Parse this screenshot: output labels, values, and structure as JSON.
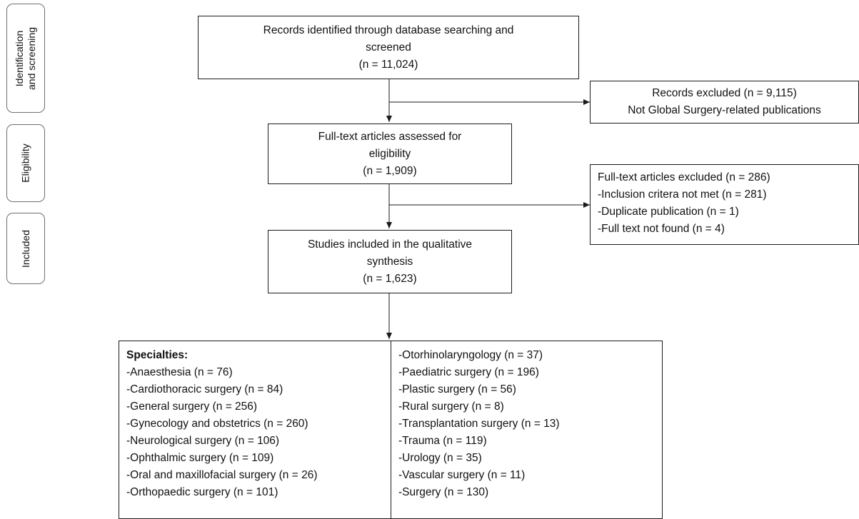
{
  "stages": {
    "identification": [
      "Identification",
      "and screening"
    ],
    "eligibility": [
      "Eligibility"
    ],
    "included": [
      "Included"
    ]
  },
  "records_identified": {
    "lines": [
      "Records identified through database searching and",
      "screened",
      "(n = 11,024)"
    ]
  },
  "records_excluded": {
    "lines": [
      "Records excluded (n = 9,115)",
      "Not Global Surgery-related publications"
    ]
  },
  "fulltext_assessed": {
    "lines": [
      "Full-text articles assessed for",
      "eligibility",
      "(n = 1,909)"
    ]
  },
  "fulltext_excluded": {
    "lines": [
      "Full-text articles excluded (n = 286)",
      "-Inclusion critera not met (n = 281)",
      "-Duplicate publication (n = 1)",
      "-Full text not found (n = 4)"
    ]
  },
  "studies_included": {
    "lines": [
      "Studies included in the qualitative",
      "synthesis",
      "(n = 1,623)"
    ]
  },
  "specialties": {
    "title": "Specialties:",
    "left": [
      "-Anaesthesia (n = 76)",
      "-Cardiothoracic surgery (n = 84)",
      "-General surgery (n = 256)",
      "-Gynecology and obstetrics (n = 260)",
      "-Neurological surgery (n = 106)",
      "-Ophthalmic surgery (n = 109)",
      "-Oral and maxillofacial surgery (n = 26)",
      "-Orthopaedic surgery (n = 101)"
    ],
    "right": [
      "-Otorhinolaryngology (n = 37)",
      "-Paediatric surgery (n = 196)",
      "-Plastic surgery (n = 56)",
      "-Rural surgery (n = 8)",
      "-Transplantation surgery (n = 13)",
      "-Trauma (n = 119)",
      "-Urology (n = 35)",
      "-Vascular surgery (n = 11)",
      "-Surgery (n = 130)"
    ]
  }
}
